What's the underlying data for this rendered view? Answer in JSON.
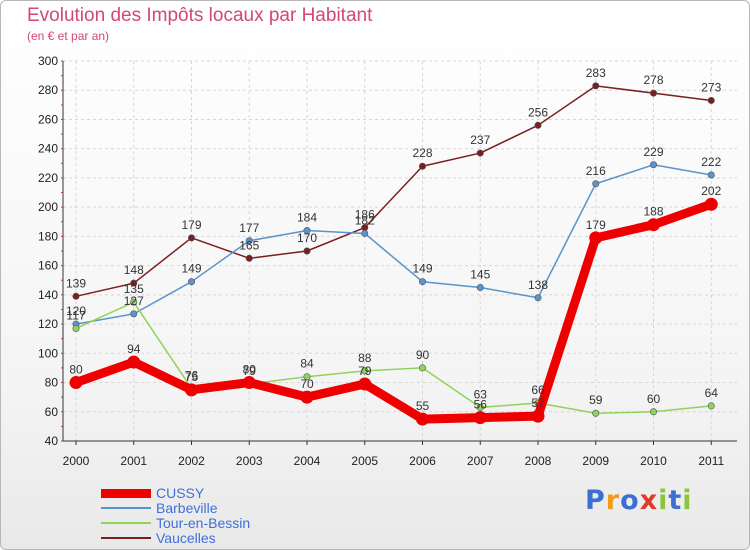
{
  "chart_data": {
    "type": "line",
    "title": "Evolution des Impôts locaux par Habitant",
    "subtitle": "(en € et par an)",
    "x": [
      "2000",
      "2001",
      "2002",
      "2003",
      "2004",
      "2005",
      "2006",
      "2007",
      "2008",
      "2009",
      "2010",
      "2011"
    ],
    "ylim": [
      40,
      300
    ],
    "yticks": [
      40,
      60,
      80,
      100,
      120,
      140,
      160,
      180,
      200,
      220,
      240,
      260,
      280,
      300
    ],
    "grid": true,
    "legend_position": "bottom-left",
    "series": [
      {
        "name": "CUSSY",
        "color": "#ee0000",
        "values": [
          80,
          94,
          75,
          80,
          70,
          79,
          55,
          56,
          57,
          179,
          188,
          202
        ]
      },
      {
        "name": "Barbeville",
        "color": "#5b93cc",
        "values": [
          120,
          127,
          149,
          177,
          184,
          182,
          149,
          145,
          138,
          216,
          229,
          222
        ]
      },
      {
        "name": "Tour-en-Bessin",
        "color": "#8fd35b",
        "values": [
          117,
          135,
          76,
          79,
          84,
          88,
          90,
          63,
          66,
          59,
          60,
          64
        ]
      },
      {
        "name": "Vaucelles",
        "color": "#7a1f1f",
        "values": [
          139,
          148,
          179,
          165,
          170,
          186,
          228,
          237,
          256,
          283,
          278,
          273
        ]
      }
    ]
  },
  "brand": {
    "name": "Proxiti",
    "letters": [
      "P",
      "r",
      "o",
      "x",
      "i",
      "t",
      "i"
    ]
  }
}
